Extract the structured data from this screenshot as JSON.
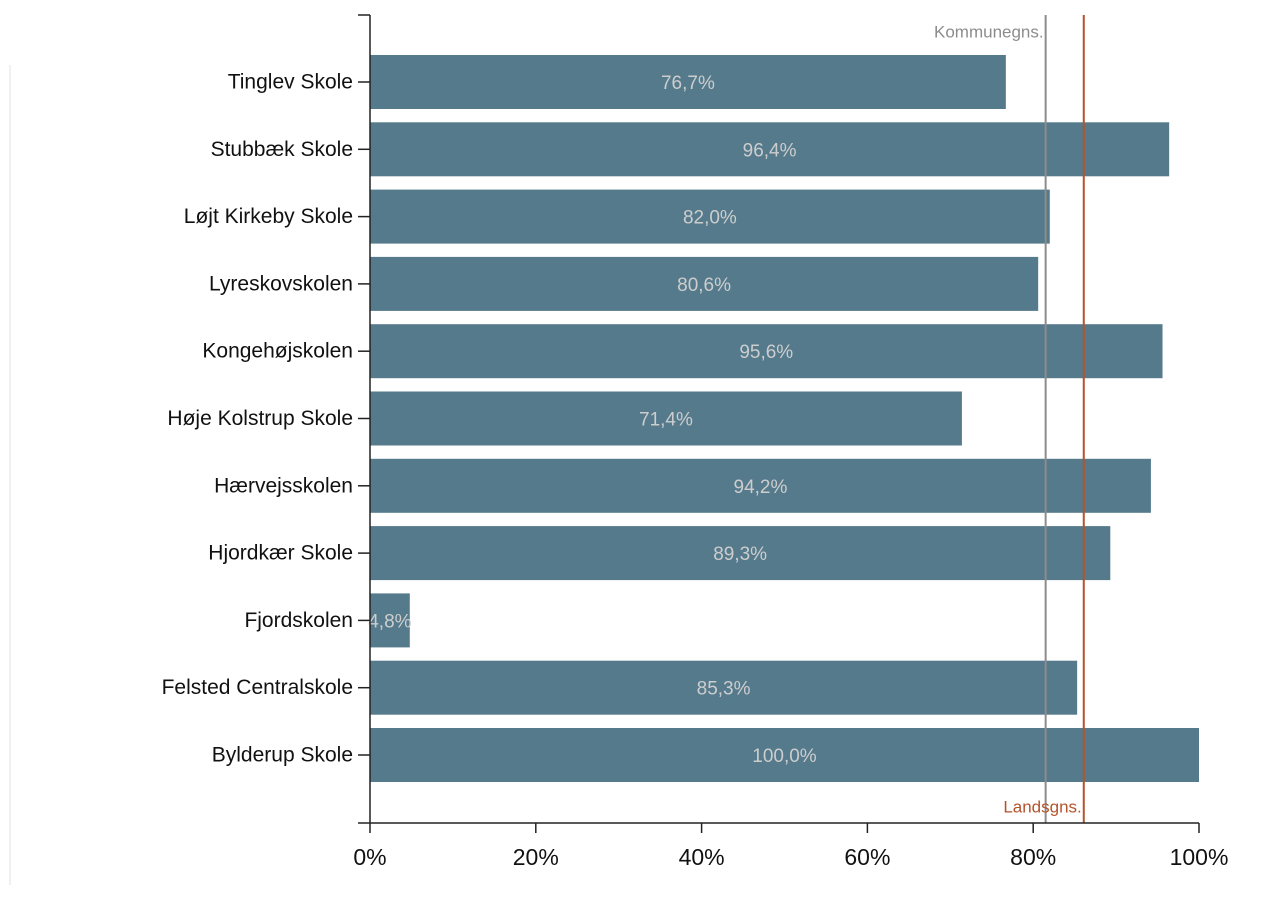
{
  "chart_data": {
    "type": "bar",
    "orientation": "horizontal",
    "categories": [
      "Tinglev Skole",
      "Stubbæk Skole",
      "Løjt Kirkeby Skole",
      "Lyreskovskolen",
      "Kongehøjskolen",
      "Høje Kolstrup Skole",
      "Hærvejsskolen",
      "Hjordkær Skole",
      "Fjordskolen",
      "Felsted Centralskole",
      "Bylderup Skole"
    ],
    "values": [
      76.7,
      96.4,
      82.0,
      80.6,
      95.6,
      71.4,
      94.2,
      89.3,
      4.8,
      85.3,
      100.0
    ],
    "value_labels": [
      "76,7%",
      "96,4%",
      "82,0%",
      "80,6%",
      "95,6%",
      "71,4%",
      "94,2%",
      "89,3%",
      "4,8%",
      "85,3%",
      "100,0%"
    ],
    "color": "#557a8c",
    "xlim": [
      0,
      100
    ],
    "xticks": [
      {
        "value": 0,
        "label": "0%"
      },
      {
        "value": 20,
        "label": "20%"
      },
      {
        "value": 40,
        "label": "40%"
      },
      {
        "value": 60,
        "label": "60%"
      },
      {
        "value": 80,
        "label": "80%"
      },
      {
        "value": 100,
        "label": "100%"
      }
    ],
    "reference_lines": [
      {
        "label": "Kommunegns.",
        "value": 81.5,
        "color": "#8c8c8c"
      },
      {
        "label": "Landsgns.",
        "value": 86.1,
        "color": "#b5532a"
      }
    ]
  }
}
